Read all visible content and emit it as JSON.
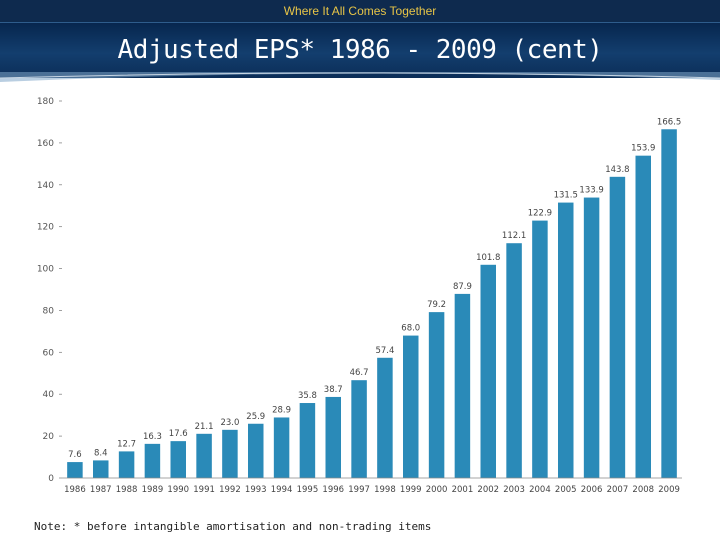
{
  "header": {
    "tagline": "Where It All Comes Together",
    "title": "Adjusted EPS* 1986 - 2009 (cent)"
  },
  "footnote": "Note: * before intangible amortisation and non-trading items",
  "colors": {
    "bar": "#2a8ab8",
    "header_bg": "#0e2a4e",
    "tagline": "#e8c547"
  },
  "chart_data": {
    "type": "bar",
    "title": "Adjusted EPS* 1986 - 2009 (cent)",
    "xlabel": "",
    "ylabel": "",
    "ylim": [
      0,
      180
    ],
    "yticks": [
      0,
      20,
      40,
      60,
      80,
      100,
      120,
      140,
      160,
      180
    ],
    "grid": false,
    "categories": [
      "1986",
      "1987",
      "1988",
      "1989",
      "1990",
      "1991",
      "1992",
      "1993",
      "1994",
      "1995",
      "1996",
      "1997",
      "1998",
      "1999",
      "2000",
      "2001",
      "2002",
      "2003",
      "2004",
      "2005",
      "2006",
      "2007",
      "2008",
      "2009"
    ],
    "values": [
      7.6,
      8.4,
      12.7,
      16.3,
      17.6,
      21.1,
      23.0,
      25.9,
      28.9,
      35.8,
      38.7,
      46.7,
      57.4,
      68.0,
      79.2,
      87.9,
      101.8,
      112.1,
      122.9,
      131.5,
      133.9,
      143.8,
      153.9,
      166.5
    ],
    "data_labels": [
      "7.6",
      "8.4",
      "12.7",
      "16.3",
      "17.6",
      "21.1",
      "23.0",
      "25.9",
      "28.9",
      "35.8",
      "38.7",
      "46.7",
      "57.4",
      "68.0",
      "79.2",
      "87.9",
      "101.8",
      "112.1",
      "122.9",
      "131.5",
      "133.9",
      "143.8",
      "153.9",
      "166.5"
    ]
  }
}
